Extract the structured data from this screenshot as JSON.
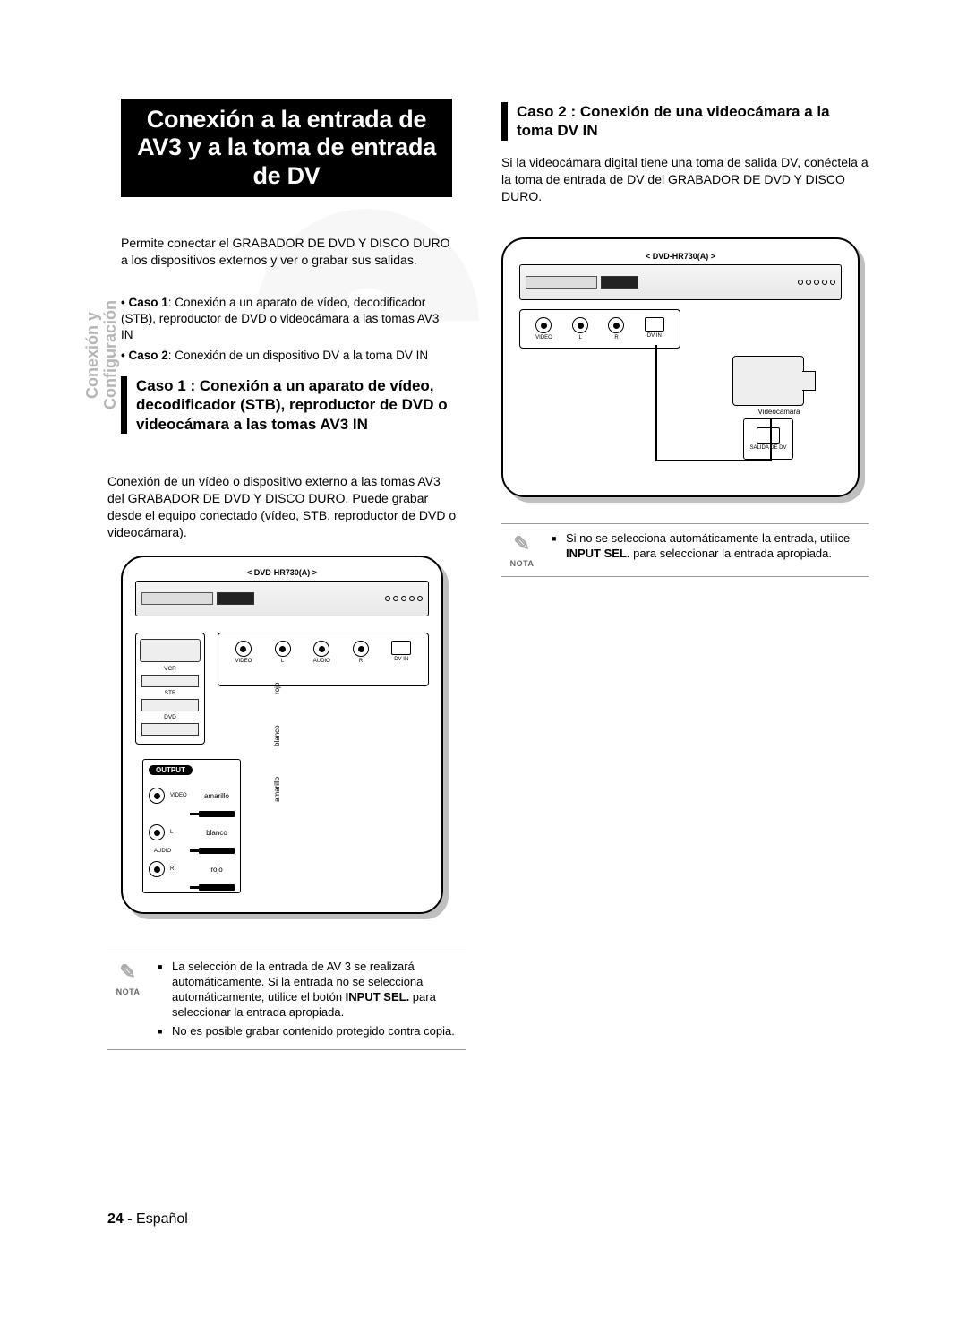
{
  "sideTab": "Conexión y\nConfiguración",
  "title": "Conexión a la entrada de AV3 y a la toma de entrada de DV",
  "intro": "Permite conectar el GRABADOR DE DVD Y DISCO DURO a los dispositivos externos y ver o grabar sus salidas.",
  "bullet1Label": "• Caso 1",
  "bullet1Text": ": Conexión a un aparato de vídeo, decodificador (STB), reproductor de DVD o videocámara a las tomas AV3 IN",
  "bullet2Label": "• Caso 2",
  "bullet2Text": ": Conexión de un dispositivo DV a la toma DV IN",
  "case1Heading": "Caso 1 : Conexión a un aparato de vídeo, decodificador (STB), reproductor de DVD o videocámara a las tomas AV3 IN",
  "case1Body": "Conexión de un vídeo o dispositivo externo a las tomas AV3 del GRABADOR DE DVD Y DISCO DURO. Puede grabar desde el equipo conectado (vídeo, STB, reproductor de DVD o videocámara).",
  "case2Heading": "Caso 2 : Conexión de una videocámara a la toma DV IN",
  "case2Body": "Si la videocámara digital tiene una toma de salida DV, conéctela a la toma de entrada de DV del GRABADOR DE DVD Y DISCO DURO.",
  "diagram": {
    "modelLabel": "< DVD-HR730(A) >",
    "devices": {
      "vcr": "VCR",
      "stb": "STB",
      "dvd": "DVD"
    },
    "jacks": {
      "video": "VIDEO",
      "audioL": "L",
      "audio": "AUDIO",
      "audioR": "R",
      "dvin": "DV IN"
    },
    "outputHeader": "OUTPUT",
    "outputRows": {
      "video": "VIDEO",
      "audio": "AUDIO",
      "l": "L",
      "r": "R"
    },
    "colors": {
      "yellow": "amarillo",
      "white": "blanco",
      "red": "rojo"
    },
    "camcorder": "Videocámara",
    "dvOutLabel": "SALIDA DE DV"
  },
  "noteLabel": "NOTA",
  "note1Items": [
    "La selección de la entrada de AV 3 se realizará automáticamente. Si la entrada no se selecciona automáticamente, utilice el botón INPUT SEL. para seleccionar la entrada apropiada.",
    "No es posible grabar contenido protegido contra copia."
  ],
  "note2Items": [
    "Si no se selecciona automáticamente la entrada, utilice INPUT SEL. para seleccionar la entrada apropiada."
  ],
  "footer": {
    "pageNum": "24 -",
    "lang": "Español"
  }
}
